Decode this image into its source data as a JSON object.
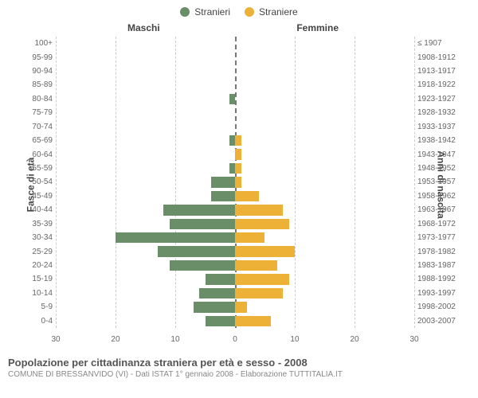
{
  "legend": {
    "male": {
      "label": "Stranieri",
      "color": "#6a8e68"
    },
    "female": {
      "label": "Straniere",
      "color": "#edb137"
    }
  },
  "column_headers": {
    "left": "Maschi",
    "right": "Femmine"
  },
  "axis_titles": {
    "left": "Fasce di età",
    "right": "Anni di nascita"
  },
  "x_axis": {
    "max": 30,
    "ticks_left": [
      30,
      20,
      10,
      0
    ],
    "ticks_right": [
      0,
      10,
      20,
      30
    ]
  },
  "grid_color": "#cccccc",
  "center_line_color": "#777777",
  "background_color": "#ffffff",
  "bar_colors": {
    "male": "#6a8e68",
    "female": "#edb137"
  },
  "rows": [
    {
      "age": "100+",
      "years": "≤ 1907",
      "male": 0,
      "female": 0
    },
    {
      "age": "95-99",
      "years": "1908-1912",
      "male": 0,
      "female": 0
    },
    {
      "age": "90-94",
      "years": "1913-1917",
      "male": 0,
      "female": 0
    },
    {
      "age": "85-89",
      "years": "1918-1922",
      "male": 0,
      "female": 0
    },
    {
      "age": "80-84",
      "years": "1923-1927",
      "male": 1,
      "female": 0
    },
    {
      "age": "75-79",
      "years": "1928-1932",
      "male": 0,
      "female": 0
    },
    {
      "age": "70-74",
      "years": "1933-1937",
      "male": 0,
      "female": 0
    },
    {
      "age": "65-69",
      "years": "1938-1942",
      "male": 1,
      "female": 1
    },
    {
      "age": "60-64",
      "years": "1943-1947",
      "male": 0,
      "female": 1
    },
    {
      "age": "55-59",
      "years": "1948-1952",
      "male": 1,
      "female": 1
    },
    {
      "age": "50-54",
      "years": "1953-1957",
      "male": 4,
      "female": 1
    },
    {
      "age": "45-49",
      "years": "1958-1962",
      "male": 4,
      "female": 4
    },
    {
      "age": "40-44",
      "years": "1963-1967",
      "male": 12,
      "female": 8
    },
    {
      "age": "35-39",
      "years": "1968-1972",
      "male": 11,
      "female": 9
    },
    {
      "age": "30-34",
      "years": "1973-1977",
      "male": 20,
      "female": 5
    },
    {
      "age": "25-29",
      "years": "1978-1982",
      "male": 13,
      "female": 10
    },
    {
      "age": "20-24",
      "years": "1983-1987",
      "male": 11,
      "female": 7
    },
    {
      "age": "15-19",
      "years": "1988-1992",
      "male": 5,
      "female": 9
    },
    {
      "age": "10-14",
      "years": "1993-1997",
      "male": 6,
      "female": 8
    },
    {
      "age": "5-9",
      "years": "1998-2002",
      "male": 7,
      "female": 2
    },
    {
      "age": "0-4",
      "years": "2003-2007",
      "male": 5,
      "female": 6
    }
  ],
  "footer": {
    "title": "Popolazione per cittadinanza straniera per età e sesso - 2008",
    "subtitle": "COMUNE DI BRESSANVIDO (VI) - Dati ISTAT 1° gennaio 2008 - Elaborazione TUTTITALIA.IT"
  }
}
